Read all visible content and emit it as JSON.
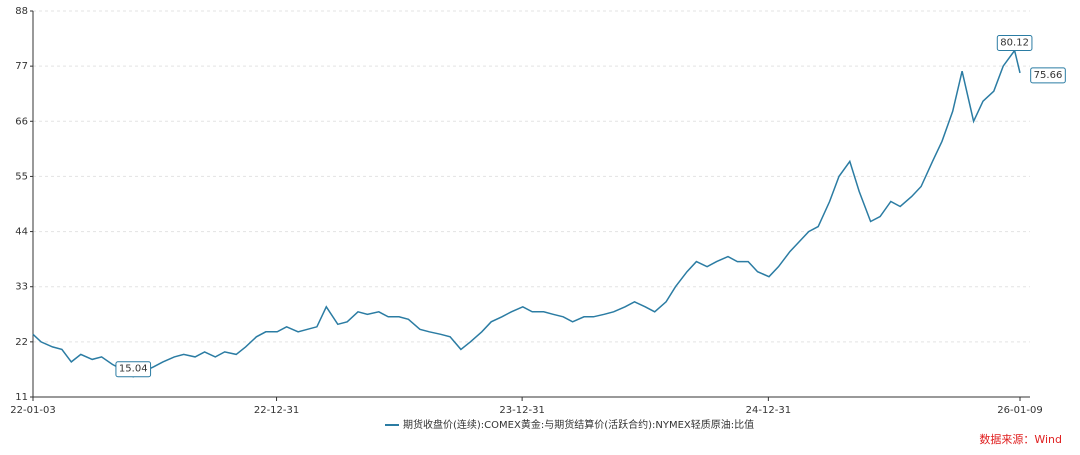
{
  "chart_data": {
    "type": "line",
    "x": [
      "22-01-03",
      "22-01-15",
      "22-02-01",
      "22-02-15",
      "22-03-01",
      "22-03-15",
      "22-04-01",
      "22-04-15",
      "22-05-01",
      "22-05-15",
      "22-06-01",
      "22-06-15",
      "22-07-01",
      "22-07-15",
      "22-08-01",
      "22-08-15",
      "22-09-01",
      "22-09-15",
      "22-10-01",
      "22-10-15",
      "22-11-01",
      "22-11-15",
      "22-12-01",
      "22-12-15",
      "23-01-01",
      "23-01-15",
      "23-02-01",
      "23-02-15",
      "23-03-01",
      "23-03-15",
      "23-04-01",
      "23-04-15",
      "23-05-01",
      "23-05-15",
      "23-06-01",
      "23-06-15",
      "23-07-01",
      "23-07-15",
      "23-08-01",
      "23-08-15",
      "23-09-01",
      "23-09-15",
      "23-10-01",
      "23-10-15",
      "23-11-01",
      "23-11-15",
      "23-12-01",
      "23-12-15",
      "24-01-01",
      "24-01-15",
      "24-02-01",
      "24-02-15",
      "24-03-01",
      "24-03-15",
      "24-04-01",
      "24-04-15",
      "24-05-01",
      "24-05-15",
      "24-06-01",
      "24-06-15",
      "24-07-01",
      "24-07-15",
      "24-08-01",
      "24-08-15",
      "24-09-01",
      "24-09-15",
      "24-10-01",
      "24-10-15",
      "24-11-01",
      "24-11-15",
      "24-12-01",
      "24-12-15",
      "25-01-01",
      "25-01-15",
      "25-02-01",
      "25-02-15",
      "25-03-01",
      "25-03-15",
      "25-04-01",
      "25-04-15",
      "25-05-01",
      "25-05-15",
      "25-06-01",
      "25-06-15",
      "25-07-01",
      "25-07-15",
      "25-08-01",
      "25-08-15",
      "25-09-01",
      "25-09-15",
      "25-10-01",
      "25-10-15",
      "25-11-01",
      "25-11-15",
      "25-12-01",
      "25-12-15",
      "26-01-01",
      "26-01-09"
    ],
    "series": [
      {
        "name": "期货收盘价(连续):COMEX黄金:与期货结算价(活跃合约):NYMEX轻质原油:比值",
        "color": "#2b7ca3",
        "values": [
          23.5,
          22,
          21,
          20.5,
          18,
          19.5,
          18.5,
          19,
          17.5,
          16.5,
          15.04,
          16,
          17,
          18,
          19,
          19.5,
          19,
          20,
          19,
          20,
          19.5,
          21,
          23,
          24,
          24,
          25,
          24,
          24.5,
          25,
          29,
          25.5,
          26,
          28,
          27.5,
          28,
          27,
          27,
          26.5,
          24.5,
          24,
          23.5,
          23,
          20.5,
          22,
          24,
          26,
          27,
          28,
          29,
          28,
          28,
          27.5,
          27,
          26,
          27,
          27,
          27.5,
          28,
          29,
          30,
          29,
          28,
          30,
          33,
          36,
          38,
          37,
          38,
          39,
          38,
          38,
          36,
          35,
          37,
          40,
          42,
          44,
          45,
          50,
          55,
          58,
          52,
          46,
          47,
          50,
          49,
          51,
          53,
          58,
          62,
          68,
          76,
          66,
          70,
          72,
          77,
          80.12,
          75.66
        ]
      }
    ],
    "annotated_points": [
      10,
      96,
      97
    ],
    "xlim": [
      "22-01-03",
      "26-01-09"
    ],
    "xticks": [
      "22-01-03",
      "22-12-31",
      "23-12-31",
      "24-12-31",
      "26-01-09"
    ],
    "ylim": [
      11,
      88
    ],
    "yticks": [
      11,
      22,
      33,
      44,
      55,
      66,
      77,
      88
    ],
    "grid": true,
    "source": "数据来源：Wind"
  }
}
